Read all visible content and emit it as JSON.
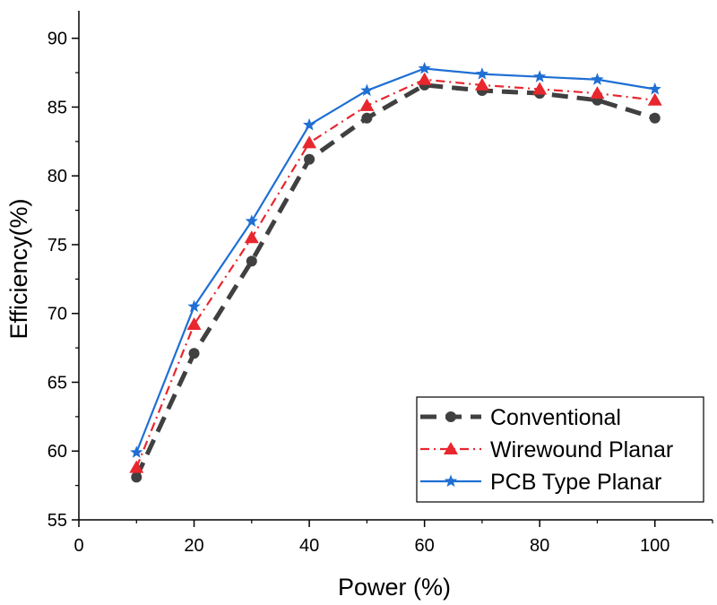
{
  "chart_data": {
    "type": "line",
    "xlabel": "Power (%)",
    "ylabel": "Efficiency(%)",
    "xlim": [
      0,
      110
    ],
    "ylim": [
      55,
      92
    ],
    "xticks": [
      0,
      20,
      40,
      60,
      80,
      100
    ],
    "yticks": [
      55,
      60,
      65,
      70,
      75,
      80,
      85,
      90
    ],
    "grid": false,
    "legend_position": "bottom-right",
    "x": [
      10,
      20,
      30,
      40,
      50,
      60,
      70,
      80,
      90,
      100
    ],
    "series": [
      {
        "name": "Conventional",
        "color": "#404040",
        "marker": "circle",
        "line_style": "dash",
        "values": [
          58.1,
          67.1,
          73.8,
          81.2,
          84.2,
          86.6,
          86.2,
          86.0,
          85.5,
          84.2
        ]
      },
      {
        "name": "Wirewound Planar",
        "color": "#e8262e",
        "marker": "triangle",
        "line_style": "dash-dot",
        "values": [
          58.8,
          69.2,
          75.5,
          82.4,
          85.1,
          87.0,
          86.6,
          86.3,
          86.0,
          85.5
        ]
      },
      {
        "name": "PCB Type Planar",
        "color": "#1f6fd4",
        "marker": "star",
        "line_style": "solid",
        "values": [
          59.9,
          70.5,
          76.7,
          83.7,
          86.2,
          87.8,
          87.4,
          87.2,
          87.0,
          86.3
        ]
      }
    ]
  }
}
